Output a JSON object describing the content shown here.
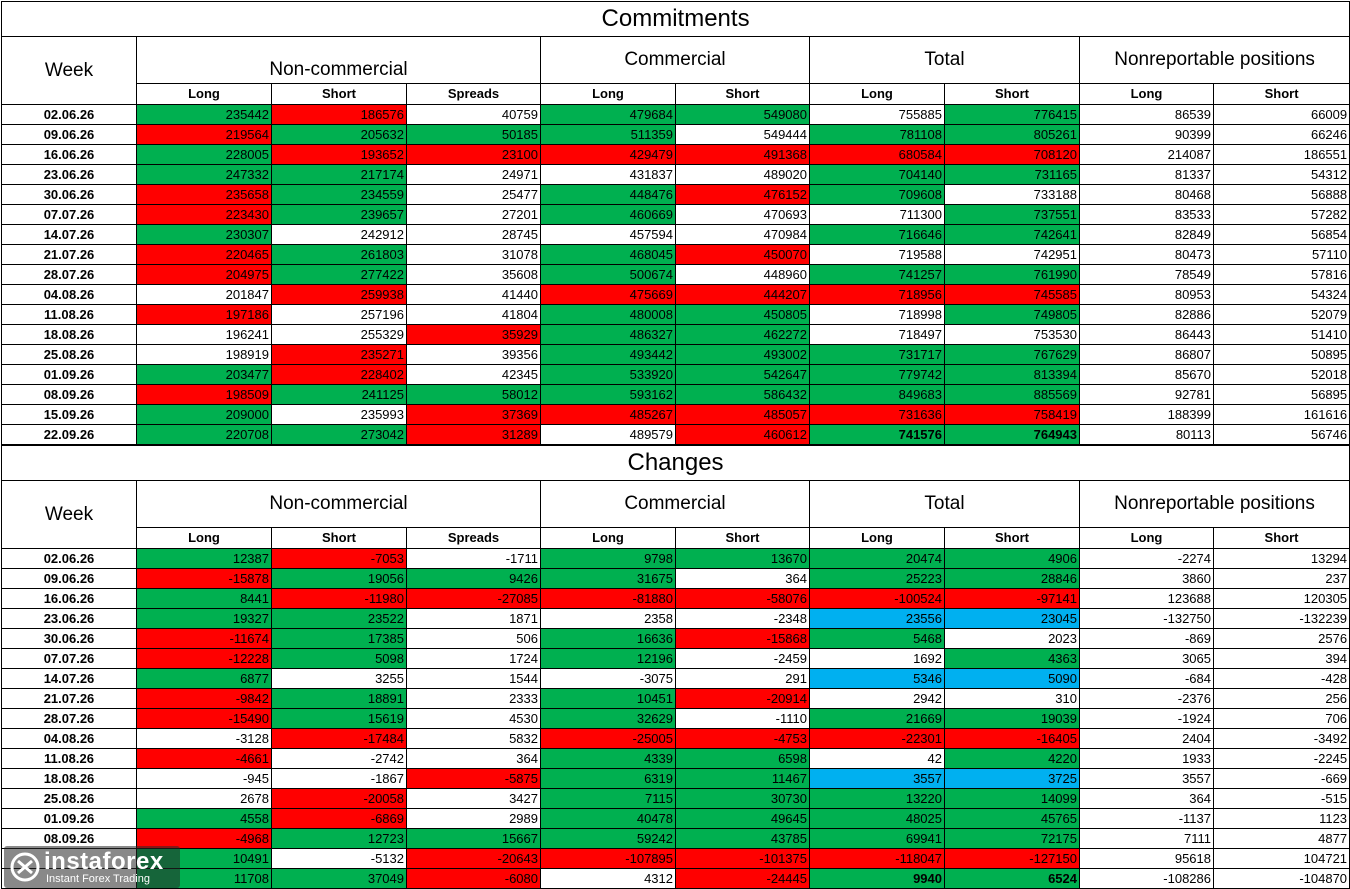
{
  "commitments": {
    "title": "Commitments",
    "headers": {
      "week": "Week",
      "groups": [
        "Non-commercial",
        "Commercial",
        "Total",
        "Nonreportable positions"
      ],
      "sub": [
        "Long",
        "Short",
        "Spreads",
        "Long",
        "Short",
        "Long",
        "Short",
        "Long",
        "Short"
      ]
    },
    "rows": [
      {
        "week": "02.06.26",
        "values": [
          "235442",
          "186576",
          "40759",
          "479684",
          "549080",
          "755885",
          "776415",
          "86539",
          "66009"
        ],
        "colors": [
          "g",
          "r",
          "w",
          "g",
          "g",
          "w",
          "g",
          "w",
          "w"
        ]
      },
      {
        "week": "09.06.26",
        "values": [
          "219564",
          "205632",
          "50185",
          "511359",
          "549444",
          "781108",
          "805261",
          "90399",
          "66246"
        ],
        "colors": [
          "r",
          "g",
          "g",
          "g",
          "w",
          "g",
          "g",
          "w",
          "w"
        ]
      },
      {
        "week": "16.06.26",
        "values": [
          "228005",
          "193652",
          "23100",
          "429479",
          "491368",
          "680584",
          "708120",
          "214087",
          "186551"
        ],
        "colors": [
          "g",
          "r",
          "r",
          "r",
          "r",
          "r",
          "r",
          "w",
          "w"
        ]
      },
      {
        "week": "23.06.26",
        "values": [
          "247332",
          "217174",
          "24971",
          "431837",
          "489020",
          "704140",
          "731165",
          "81337",
          "54312"
        ],
        "colors": [
          "g",
          "g",
          "w",
          "w",
          "w",
          "g",
          "g",
          "w",
          "w"
        ]
      },
      {
        "week": "30.06.26",
        "values": [
          "235658",
          "234559",
          "25477",
          "448476",
          "476152",
          "709608",
          "733188",
          "80468",
          "56888"
        ],
        "colors": [
          "r",
          "g",
          "w",
          "g",
          "r",
          "g",
          "w",
          "w",
          "w"
        ]
      },
      {
        "week": "07.07.26",
        "values": [
          "223430",
          "239657",
          "27201",
          "460669",
          "470693",
          "711300",
          "737551",
          "83533",
          "57282"
        ],
        "colors": [
          "r",
          "g",
          "w",
          "g",
          "w",
          "w",
          "g",
          "w",
          "w"
        ]
      },
      {
        "week": "14.07.26",
        "values": [
          "230307",
          "242912",
          "28745",
          "457594",
          "470984",
          "716646",
          "742641",
          "82849",
          "56854"
        ],
        "colors": [
          "g",
          "w",
          "w",
          "w",
          "w",
          "g",
          "g",
          "w",
          "w"
        ]
      },
      {
        "week": "21.07.26",
        "values": [
          "220465",
          "261803",
          "31078",
          "468045",
          "450070",
          "719588",
          "742951",
          "80473",
          "57110"
        ],
        "colors": [
          "r",
          "g",
          "w",
          "g",
          "r",
          "w",
          "w",
          "w",
          "w"
        ]
      },
      {
        "week": "28.07.26",
        "values": [
          "204975",
          "277422",
          "35608",
          "500674",
          "448960",
          "741257",
          "761990",
          "78549",
          "57816"
        ],
        "colors": [
          "r",
          "g",
          "w",
          "g",
          "w",
          "g",
          "g",
          "w",
          "w"
        ]
      },
      {
        "week": "04.08.26",
        "values": [
          "201847",
          "259938",
          "41440",
          "475669",
          "444207",
          "718956",
          "745585",
          "80953",
          "54324"
        ],
        "colors": [
          "w",
          "r",
          "w",
          "r",
          "r",
          "r",
          "r",
          "w",
          "w"
        ]
      },
      {
        "week": "11.08.26",
        "values": [
          "197186",
          "257196",
          "41804",
          "480008",
          "450805",
          "718998",
          "749805",
          "82886",
          "52079"
        ],
        "colors": [
          "r",
          "w",
          "w",
          "g",
          "g",
          "w",
          "g",
          "w",
          "w"
        ]
      },
      {
        "week": "18.08.26",
        "values": [
          "196241",
          "255329",
          "35929",
          "486327",
          "462272",
          "718497",
          "753530",
          "86443",
          "51410"
        ],
        "colors": [
          "w",
          "w",
          "r",
          "g",
          "g",
          "w",
          "w",
          "w",
          "w"
        ]
      },
      {
        "week": "25.08.26",
        "values": [
          "198919",
          "235271",
          "39356",
          "493442",
          "493002",
          "731717",
          "767629",
          "86807",
          "50895"
        ],
        "colors": [
          "w",
          "r",
          "w",
          "g",
          "g",
          "g",
          "g",
          "w",
          "w"
        ]
      },
      {
        "week": "01.09.26",
        "values": [
          "203477",
          "228402",
          "42345",
          "533920",
          "542647",
          "779742",
          "813394",
          "85670",
          "52018"
        ],
        "colors": [
          "g",
          "r",
          "w",
          "g",
          "g",
          "g",
          "g",
          "w",
          "w"
        ]
      },
      {
        "week": "08.09.26",
        "values": [
          "198509",
          "241125",
          "58012",
          "593162",
          "586432",
          "849683",
          "885569",
          "92781",
          "56895"
        ],
        "colors": [
          "r",
          "g",
          "g",
          "g",
          "g",
          "g",
          "g",
          "w",
          "w"
        ]
      },
      {
        "week": "15.09.26",
        "values": [
          "209000",
          "235993",
          "37369",
          "485267",
          "485057",
          "731636",
          "758419",
          "188399",
          "161616"
        ],
        "colors": [
          "g",
          "w",
          "r",
          "r",
          "r",
          "r",
          "r",
          "w",
          "w"
        ]
      },
      {
        "week": "22.09.26",
        "values": [
          "220708",
          "273042",
          "31289",
          "489579",
          "460612",
          "741576",
          "764943",
          "80113",
          "56746"
        ],
        "colors": [
          "g",
          "g",
          "r",
          "w",
          "r",
          "g",
          "g",
          "w",
          "w"
        ],
        "bold": [
          false,
          false,
          false,
          false,
          false,
          true,
          true,
          false,
          false
        ]
      }
    ]
  },
  "changes": {
    "title": "Changes",
    "headers": {
      "week": "Week",
      "groups": [
        "Non-commercial",
        "Commercial",
        "Total",
        "Nonreportable positions"
      ],
      "sub": [
        "Long",
        "Short",
        "Spreads",
        "Long",
        "Short",
        "Long",
        "Short",
        "Long",
        "Short"
      ]
    },
    "rows": [
      {
        "week": "02.06.26",
        "values": [
          "12387",
          "-7053",
          "-1711",
          "9798",
          "13670",
          "20474",
          "4906",
          "-2274",
          "13294"
        ],
        "colors": [
          "g",
          "r",
          "w",
          "g",
          "g",
          "g",
          "g",
          "w",
          "w"
        ]
      },
      {
        "week": "09.06.26",
        "values": [
          "-15878",
          "19056",
          "9426",
          "31675",
          "364",
          "25223",
          "28846",
          "3860",
          "237"
        ],
        "colors": [
          "r",
          "g",
          "g",
          "g",
          "w",
          "g",
          "g",
          "w",
          "w"
        ]
      },
      {
        "week": "16.06.26",
        "values": [
          "8441",
          "-11980",
          "-27085",
          "-81880",
          "-58076",
          "-100524",
          "-97141",
          "123688",
          "120305"
        ],
        "colors": [
          "g",
          "r",
          "r",
          "r",
          "r",
          "r",
          "r",
          "w",
          "w"
        ]
      },
      {
        "week": "23.06.26",
        "values": [
          "19327",
          "23522",
          "1871",
          "2358",
          "-2348",
          "23556",
          "23045",
          "-132750",
          "-132239"
        ],
        "colors": [
          "g",
          "g",
          "w",
          "w",
          "w",
          "c",
          "c",
          "w",
          "w"
        ]
      },
      {
        "week": "30.06.26",
        "values": [
          "-11674",
          "17385",
          "506",
          "16636",
          "-15868",
          "5468",
          "2023",
          "-869",
          "2576"
        ],
        "colors": [
          "r",
          "g",
          "w",
          "g",
          "r",
          "g",
          "w",
          "w",
          "w"
        ]
      },
      {
        "week": "07.07.26",
        "values": [
          "-12228",
          "5098",
          "1724",
          "12196",
          "-2459",
          "1692",
          "4363",
          "3065",
          "394"
        ],
        "colors": [
          "r",
          "g",
          "w",
          "g",
          "w",
          "w",
          "g",
          "w",
          "w"
        ]
      },
      {
        "week": "14.07.26",
        "values": [
          "6877",
          "3255",
          "1544",
          "-3075",
          "291",
          "5346",
          "5090",
          "-684",
          "-428"
        ],
        "colors": [
          "g",
          "w",
          "w",
          "w",
          "w",
          "c",
          "c",
          "w",
          "w"
        ]
      },
      {
        "week": "21.07.26",
        "values": [
          "-9842",
          "18891",
          "2333",
          "10451",
          "-20914",
          "2942",
          "310",
          "-2376",
          "256"
        ],
        "colors": [
          "r",
          "g",
          "w",
          "g",
          "r",
          "w",
          "w",
          "w",
          "w"
        ]
      },
      {
        "week": "28.07.26",
        "values": [
          "-15490",
          "15619",
          "4530",
          "32629",
          "-1110",
          "21669",
          "19039",
          "-1924",
          "706"
        ],
        "colors": [
          "r",
          "g",
          "w",
          "g",
          "w",
          "g",
          "g",
          "w",
          "w"
        ]
      },
      {
        "week": "04.08.26",
        "values": [
          "-3128",
          "-17484",
          "5832",
          "-25005",
          "-4753",
          "-22301",
          "-16405",
          "2404",
          "-3492"
        ],
        "colors": [
          "w",
          "r",
          "w",
          "r",
          "r",
          "r",
          "r",
          "w",
          "w"
        ]
      },
      {
        "week": "11.08.26",
        "values": [
          "-4661",
          "-2742",
          "364",
          "4339",
          "6598",
          "42",
          "4220",
          "1933",
          "-2245"
        ],
        "colors": [
          "r",
          "w",
          "w",
          "g",
          "g",
          "w",
          "g",
          "w",
          "w"
        ]
      },
      {
        "week": "18.08.26",
        "values": [
          "-945",
          "-1867",
          "-5875",
          "6319",
          "11467",
          "3557",
          "3725",
          "3557",
          "-669"
        ],
        "colors": [
          "w",
          "w",
          "r",
          "g",
          "g",
          "c",
          "c",
          "w",
          "w"
        ]
      },
      {
        "week": "25.08.26",
        "values": [
          "2678",
          "-20058",
          "3427",
          "7115",
          "30730",
          "13220",
          "14099",
          "364",
          "-515"
        ],
        "colors": [
          "w",
          "r",
          "w",
          "g",
          "g",
          "g",
          "g",
          "w",
          "w"
        ]
      },
      {
        "week": "01.09.26",
        "values": [
          "4558",
          "-6869",
          "2989",
          "40478",
          "49645",
          "48025",
          "45765",
          "-1137",
          "1123"
        ],
        "colors": [
          "g",
          "r",
          "w",
          "g",
          "g",
          "g",
          "g",
          "w",
          "w"
        ]
      },
      {
        "week": "08.09.26",
        "values": [
          "-4968",
          "12723",
          "15667",
          "59242",
          "43785",
          "69941",
          "72175",
          "7111",
          "4877"
        ],
        "colors": [
          "r",
          "g",
          "g",
          "g",
          "g",
          "g",
          "g",
          "w",
          "w"
        ]
      },
      {
        "week": "",
        "values": [
          "10491",
          "-5132",
          "-20643",
          "-107895",
          "-101375",
          "-118047",
          "-127150",
          "95618",
          "104721"
        ],
        "colors": [
          "g",
          "w",
          "r",
          "r",
          "r",
          "r",
          "r",
          "w",
          "w"
        ]
      },
      {
        "week": "",
        "values": [
          "11708",
          "37049",
          "-6080",
          "4312",
          "-24445",
          "9940",
          "6524",
          "-108286",
          "-104870"
        ],
        "colors": [
          "g",
          "g",
          "r",
          "w",
          "r",
          "g",
          "g",
          "w",
          "w"
        ],
        "bold": [
          false,
          false,
          false,
          false,
          false,
          true,
          true,
          false,
          false
        ]
      }
    ]
  },
  "watermark": {
    "brand": "instaforex",
    "tagline": "Instant Forex Trading",
    "icon": "instaforex-logo-icon"
  },
  "colors": {
    "g": "#00b050",
    "r": "#ff0000",
    "c": "#00b0f0",
    "w": "#ffffff"
  }
}
